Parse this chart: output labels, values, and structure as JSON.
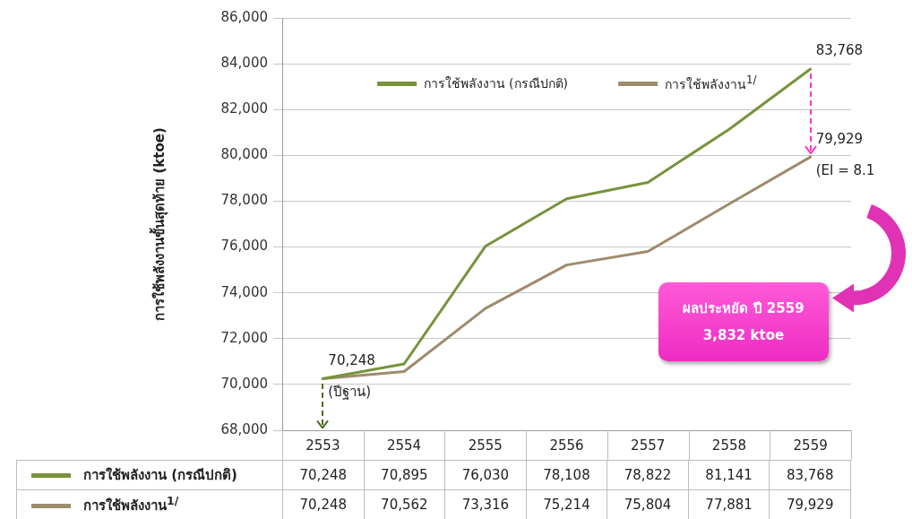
{
  "chart_data": {
    "type": "line",
    "ylabel": "การใช้พลังงานขั้นสุดท้าย (ktoe)",
    "categories": [
      "2553",
      "2554",
      "2555",
      "2556",
      "2557",
      "2558",
      "2559"
    ],
    "series": [
      {
        "name": "การใช้พลังงาน (กรณีปกติ)",
        "color": "#77933c",
        "values": [
          70248,
          70895,
          76030,
          78108,
          78822,
          81141,
          83768
        ],
        "value_labels": [
          "70,248",
          "70,895",
          "76,030",
          "78,108",
          "78,822",
          "81,141",
          "83,768"
        ]
      },
      {
        "name": "การใช้พลังงาน$^{1/}$",
        "color": "#9d8c6c",
        "values": [
          70248,
          70562,
          73316,
          75214,
          75804,
          77881,
          79929
        ],
        "value_labels": [
          "70,248",
          "70,562",
          "73,316",
          "75,214",
          "75,804",
          "77,881",
          "79,929"
        ]
      }
    ],
    "ylim": [
      68000,
      86000
    ],
    "yticks": [
      {
        "value": 68000,
        "label": "68,000"
      },
      {
        "value": 70000,
        "label": "70,000"
      },
      {
        "value": 72000,
        "label": "72,000"
      },
      {
        "value": 74000,
        "label": "74,000"
      },
      {
        "value": 76000,
        "label": "76,000"
      },
      {
        "value": 78000,
        "label": "78,000"
      },
      {
        "value": 80000,
        "label": "80,000"
      },
      {
        "value": 82000,
        "label": "82,000"
      },
      {
        "value": 84000,
        "label": "84,000"
      },
      {
        "value": 86000,
        "label": "86,000"
      }
    ],
    "grid": "y",
    "legend": "top",
    "marker": "none",
    "annotations": [
      {
        "text": "83,768",
        "x": "2559",
        "y": 83768
      },
      {
        "text": "79,929",
        "x": "2559",
        "y": 79929
      },
      {
        "text": "(EI = 8.1",
        "x": "2559",
        "y": 79929
      },
      {
        "text": "70,248",
        "x": "2553",
        "y": 70248
      },
      {
        "text": "(ปีฐาน)",
        "x": "2553",
        "y": 70248
      },
      "ผลประหยัด ปี 2559\n3,832 ktoe"
    ]
  }
}
